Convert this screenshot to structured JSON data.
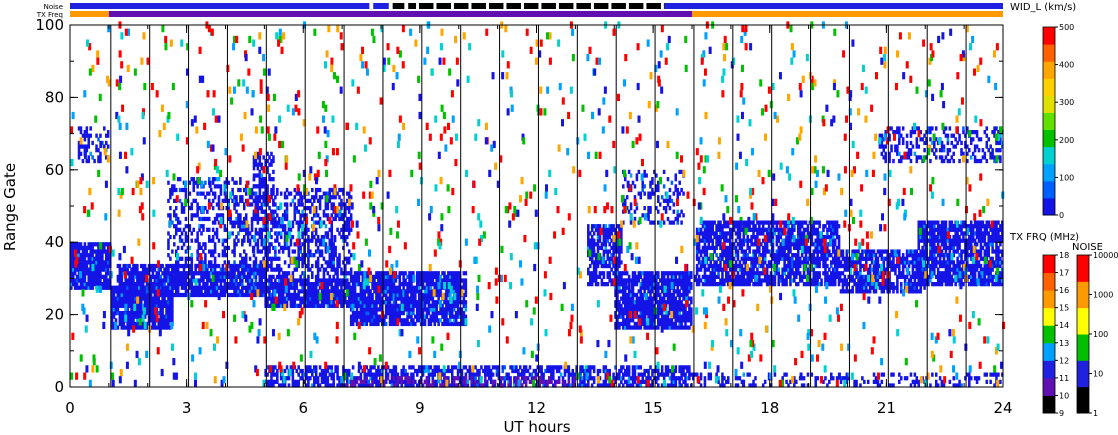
{
  "chart_data": {
    "type": "heatmap",
    "xlabel": "UT hours",
    "ylabel": "Range Gate",
    "xlim": [
      0,
      24
    ],
    "ylim": [
      0,
      100
    ],
    "x_ticks": [
      "0",
      "3",
      "6",
      "9",
      "12",
      "15",
      "18",
      "21",
      "24"
    ],
    "y_ticks": [
      "0",
      "20",
      "40",
      "60",
      "80",
      "100"
    ],
    "scan_lines_hours": [
      1.05,
      2.05,
      3.05,
      4.05,
      5.05,
      6.05,
      7.05,
      8.05,
      9.05,
      10.05,
      11.05,
      12.05,
      13.05,
      14.05,
      15.05,
      16.05,
      17.05,
      18.05,
      19.05,
      20.05,
      21.05,
      22.05,
      23.05
    ],
    "top_strip_labels": {
      "noise": "Noise",
      "txfreq": "TX Freq"
    },
    "noise_strip": [
      {
        "start": 0,
        "end": 7.7,
        "color": "#2020e0"
      },
      {
        "start": 7.8,
        "end": 8.2,
        "color": "#2020e0"
      },
      {
        "start": 8.3,
        "end": 8.6,
        "color": "#000000"
      },
      {
        "start": 8.7,
        "end": 15.3,
        "color": "#000000"
      },
      {
        "start": 15.3,
        "end": 16.0,
        "color": "#2020e0"
      },
      {
        "start": 16.0,
        "end": 24,
        "color": "#2020e0"
      }
    ],
    "txfreq_strip": [
      {
        "start": 0,
        "end": 1.0,
        "color": "#ff9900"
      },
      {
        "start": 1.0,
        "end": 16.0,
        "color": "#6010b0"
      },
      {
        "start": 16.0,
        "end": 24,
        "color": "#ff9900"
      }
    ],
    "bands": [
      {
        "x0": 0.0,
        "x1": 1.05,
        "y0": 27,
        "y1": 40,
        "color": "#1414e6",
        "density": 0.9
      },
      {
        "x0": 1.05,
        "x1": 2.6,
        "y0": 16,
        "y1": 28,
        "color": "#1414e6",
        "density": 0.9
      },
      {
        "x0": 1.2,
        "x1": 5.0,
        "y0": 25,
        "y1": 34,
        "color": "#1414e6",
        "density": 0.85
      },
      {
        "x0": 2.5,
        "x1": 5.0,
        "y0": 33,
        "y1": 58,
        "color": "#1414e6",
        "density": 0.35
      },
      {
        "x0": 4.7,
        "x1": 5.2,
        "y0": 45,
        "y1": 65,
        "color": "#1414e6",
        "density": 0.5
      },
      {
        "x0": 5.0,
        "x1": 7.2,
        "y0": 22,
        "y1": 30,
        "color": "#1414e6",
        "density": 0.9
      },
      {
        "x0": 5.0,
        "x1": 7.2,
        "y0": 30,
        "y1": 55,
        "color": "#1414e6",
        "density": 0.45
      },
      {
        "x0": 7.2,
        "x1": 10.2,
        "y0": 17,
        "y1": 32,
        "color": "#1414e6",
        "density": 0.85
      },
      {
        "x0": 13.3,
        "x1": 14.2,
        "y0": 28,
        "y1": 45,
        "color": "#1414e6",
        "density": 0.7
      },
      {
        "x0": 14.0,
        "x1": 16.0,
        "y0": 16,
        "y1": 32,
        "color": "#1414e6",
        "density": 0.85
      },
      {
        "x0": 14.2,
        "x1": 15.8,
        "y0": 45,
        "y1": 60,
        "color": "#1414e6",
        "density": 0.25
      },
      {
        "x0": 16.1,
        "x1": 19.8,
        "y0": 28,
        "y1": 46,
        "color": "#1414e6",
        "density": 0.75
      },
      {
        "x0": 19.8,
        "x1": 22.0,
        "y0": 26,
        "y1": 38,
        "color": "#1414e6",
        "density": 0.75
      },
      {
        "x0": 21.8,
        "x1": 24,
        "y0": 28,
        "y1": 46,
        "color": "#1414e6",
        "density": 0.8
      },
      {
        "x0": 20.8,
        "x1": 24,
        "y0": 62,
        "y1": 72,
        "color": "#1414e6",
        "density": 0.3
      },
      {
        "x0": 0.2,
        "x1": 1.0,
        "y0": 62,
        "y1": 72,
        "color": "#1414e6",
        "density": 0.35
      },
      {
        "x0": 5.0,
        "x1": 16.0,
        "y0": 0,
        "y1": 6,
        "color": "#1414e6",
        "density": 0.6
      },
      {
        "x0": 16.0,
        "x1": 24,
        "y0": 0,
        "y1": 4,
        "color": "#1414e6",
        "density": 0.25
      },
      {
        "x0": 7.0,
        "x1": 13.0,
        "y0": 0,
        "y1": 3,
        "color": "#6010b0",
        "density": 0.35
      }
    ],
    "scatter_colors": [
      "#ff0000",
      "#ff0000",
      "#00d0d0",
      "#00c000",
      "#1414e6",
      "#ffa500",
      "#00a0ff"
    ],
    "colorbars": [
      {
        "title": "WID_L (km/s)",
        "ticks": [
          "0",
          "100",
          "200",
          "300",
          "400",
          "500"
        ],
        "colors": [
          "#1414e6",
          "#0060ff",
          "#00a0ff",
          "#00d0d0",
          "#00c000",
          "#60e000",
          "#e0e000",
          "#ffd000",
          "#ffa500",
          "#ff6000",
          "#ff0000"
        ]
      },
      {
        "title": "TX FRQ (MHz)",
        "ticks": [
          "9",
          "10",
          "11",
          "12",
          "13",
          "14",
          "15",
          "16",
          "17",
          "18"
        ],
        "colors": [
          "#000000",
          "#6010b0",
          "#2020e0",
          "#00a0ff",
          "#00c000",
          "#ffff00",
          "#ff9900",
          "#ff6000",
          "#ff0000"
        ]
      },
      {
        "title": "NOISE",
        "ticks": [
          "1",
          "10",
          "100",
          "1000",
          "10000"
        ],
        "colors": [
          "#000000",
          "#2020e0",
          "#00c000",
          "#ffff00",
          "#ff9900",
          "#ff0000"
        ]
      }
    ]
  }
}
